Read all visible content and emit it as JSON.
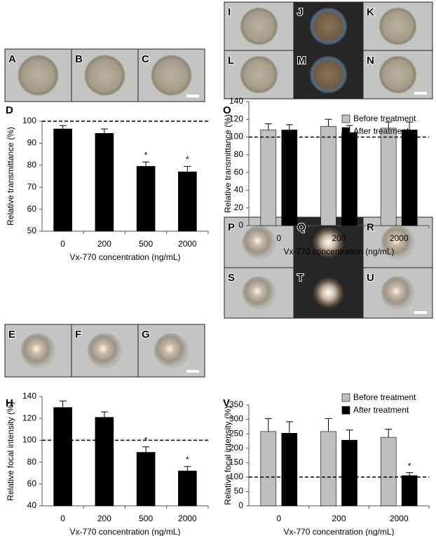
{
  "panels": {
    "top_left": [
      "A",
      "B",
      "C"
    ],
    "top_right": [
      "I",
      "J",
      "K",
      "L",
      "M",
      "N"
    ],
    "bottom_left": [
      "E",
      "F",
      "G"
    ],
    "bottom_right": [
      "P",
      "Q",
      "R",
      "S",
      "T",
      "U"
    ]
  },
  "chart_data": [
    {
      "type": "bar",
      "label": "D",
      "y_label": "Relative transmittance (%)",
      "x_label": "Vx-770 concentration (ng/mL)",
      "categories": [
        "0",
        "200",
        "500",
        "2000"
      ],
      "series": [
        {
          "name": null,
          "color": "#000000",
          "values": [
            96.5,
            94.5,
            79.5,
            77
          ],
          "errors": [
            1.5,
            2,
            2,
            2.5
          ],
          "significance": [
            null,
            null,
            "*",
            "*"
          ]
        }
      ],
      "ylim": [
        50,
        100
      ],
      "yticks": [
        50,
        60,
        70,
        80,
        90,
        100
      ],
      "reference_line": 100
    },
    {
      "type": "bar",
      "label": "O",
      "y_label": "Relative transmittance (%)",
      "x_label": "Vx-770 concentration (ng/mL)",
      "categories": [
        "0",
        "200",
        "2000"
      ],
      "series": [
        {
          "name": "Before treatment",
          "color": "#bfbfbf",
          "values": [
            108,
            112,
            110
          ],
          "errors": [
            7,
            8,
            7
          ]
        },
        {
          "name": "After treatment",
          "color": "#000000",
          "values": [
            108,
            105,
            108
          ],
          "errors": [
            6,
            8,
            9
          ]
        }
      ],
      "ylim": [
        0,
        140
      ],
      "yticks": [
        0,
        20,
        40,
        60,
        80,
        100,
        120,
        140
      ],
      "reference_line": 100,
      "legend": "top-right"
    },
    {
      "type": "bar",
      "label": "H",
      "y_label": "Relative focal intensity (%)",
      "x_label": "Vx-770 concentration (ng/mL)",
      "categories": [
        "0",
        "200",
        "500",
        "2000"
      ],
      "series": [
        {
          "name": null,
          "color": "#000000",
          "values": [
            130,
            121,
            89,
            72
          ],
          "errors": [
            6,
            5,
            5,
            4
          ],
          "significance": [
            null,
            null,
            "*",
            "*"
          ]
        }
      ],
      "ylim": [
        40,
        140
      ],
      "yticks": [
        40,
        60,
        80,
        100,
        120,
        140
      ],
      "reference_line": 100
    },
    {
      "type": "bar",
      "label": "V",
      "y_label": "Relative focal intensity (%)",
      "x_label": "Vx-770 concentration (ng/mL)",
      "categories": [
        "0",
        "200",
        "2000"
      ],
      "series": [
        {
          "name": "Before treatment",
          "color": "#bfbfbf",
          "values": [
            258,
            258,
            238
          ],
          "errors": [
            45,
            45,
            28
          ]
        },
        {
          "name": "After treatment",
          "color": "#000000",
          "values": [
            252,
            228,
            105
          ],
          "errors": [
            40,
            35,
            10
          ],
          "significance": [
            null,
            null,
            "*"
          ]
        }
      ],
      "ylim": [
        0,
        350
      ],
      "yticks": [
        0,
        50,
        100,
        150,
        200,
        250,
        300,
        350
      ],
      "reference_line": 100,
      "legend": "top-right"
    }
  ]
}
